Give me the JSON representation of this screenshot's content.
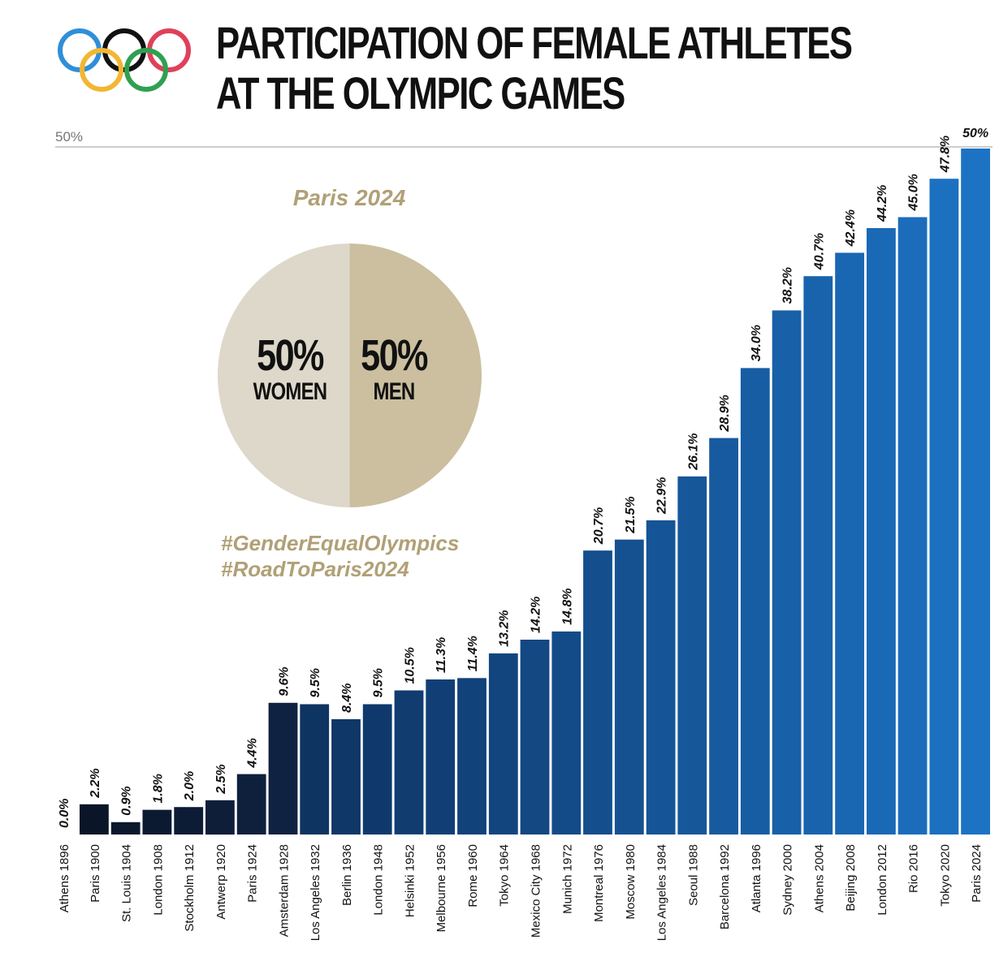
{
  "title_line1": "PARTICIPATION OF FEMALE ATHLETES",
  "title_line2": "AT THE OLYMPIC GAMES",
  "inset": {
    "heading": "Paris 2024",
    "women_pct": "50%",
    "women_label": "WOMEN",
    "men_pct": "50%",
    "men_label": "MEN",
    "hashtag1": "#GenderEqualOlympics",
    "hashtag2": "#RoadToParis2024",
    "colors": {
      "women": "#ddd8c9",
      "men": "#cbbfa0",
      "accent": "#b0a076"
    }
  },
  "chart_data": {
    "type": "bar",
    "title": "PARTICIPATION OF FEMALE ATHLETES AT THE OLYMPIC GAMES",
    "ylim": [
      0,
      50
    ],
    "reference_line_label": "50%",
    "categories": [
      "Athens 1896",
      "Paris 1900",
      "St. Louis 1904",
      "London 1908",
      "Stockholm 1912",
      "Antwerp 1920",
      "Paris 1924",
      "Amsterdam 1928",
      "Los Angeles 1932",
      "Berlin 1936",
      "London 1948",
      "Helsinki 1952",
      "Melbourne 1956",
      "Rome 1960",
      "Tokyo 1964",
      "Mexico City 1968",
      "Munich 1972",
      "Montreal 1976",
      "Moscow 1980",
      "Los Angeles 1984",
      "Seoul 1988",
      "Barcelona 1992",
      "Atlanta 1996",
      "Sydney 2000",
      "Athens 2004",
      "Beijing 2008",
      "London 2012",
      "Rio 2016",
      "Tokyo 2020",
      "Paris 2024"
    ],
    "values": [
      0.0,
      2.2,
      0.9,
      1.8,
      2.0,
      2.5,
      4.4,
      9.6,
      9.5,
      8.4,
      9.5,
      10.5,
      11.3,
      11.4,
      13.2,
      14.2,
      14.8,
      20.7,
      21.5,
      22.9,
      26.1,
      28.9,
      34.0,
      38.2,
      40.7,
      42.4,
      44.2,
      45.0,
      47.8,
      50
    ],
    "value_labels": [
      "0.0%",
      "2.2%",
      "0.9%",
      "1.8%",
      "2.0%",
      "2.5%",
      "4.4%",
      "9.6%",
      "9.5%",
      "8.4%",
      "9.5%",
      "10.5%",
      "11.3%",
      "11.4%",
      "13.2%",
      "14.2%",
      "14.8%",
      "20.7%",
      "21.5%",
      "22.9%",
      "26.1%",
      "28.9%",
      "34.0%",
      "38.2%",
      "40.7%",
      "42.4%",
      "44.2%",
      "45.0%",
      "47.8%",
      "50%"
    ],
    "colors": {
      "bar_dark": "#0c1a33",
      "bar_light": "#1a72c4",
      "gridline": "#bbbbbb",
      "text": "#111111"
    }
  }
}
